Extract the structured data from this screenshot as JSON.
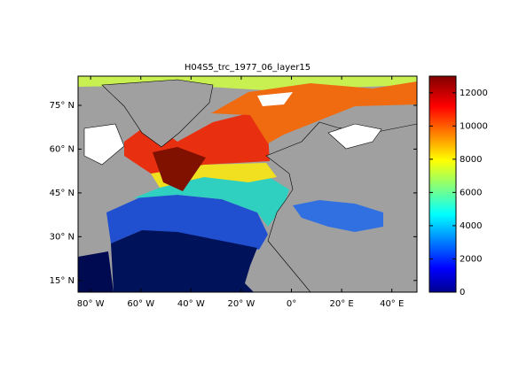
{
  "chart_data": {
    "type": "map",
    "title": "H04S5_trc_1977_06_layer15",
    "xlim": [
      -85,
      50
    ],
    "xticks": [
      {
        "value": -80,
        "label": "80° W"
      },
      {
        "value": -60,
        "label": "60° W"
      },
      {
        "value": -40,
        "label": "40° W"
      },
      {
        "value": -20,
        "label": "20° W"
      },
      {
        "value": 0,
        "label": "0°"
      },
      {
        "value": 20,
        "label": "20° E"
      },
      {
        "value": 40,
        "label": "40° E"
      }
    ],
    "ylim": [
      11,
      85
    ],
    "yticks": [
      {
        "value": 15,
        "label": "15° N"
      },
      {
        "value": 30,
        "label": "30° N"
      },
      {
        "value": 45,
        "label": "45° N"
      },
      {
        "value": 60,
        "label": "60° N"
      },
      {
        "value": 75,
        "label": "75° N"
      }
    ],
    "colorbar": {
      "clim": [
        0,
        13000
      ],
      "ticks": [
        0,
        2000,
        4000,
        6000,
        8000,
        10000,
        12000
      ],
      "colormap": "jet"
    }
  }
}
